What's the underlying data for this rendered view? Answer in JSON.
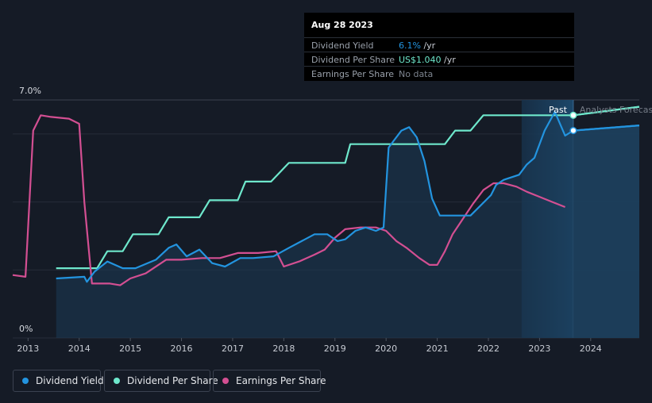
{
  "chart_data": {
    "type": "line",
    "title": "",
    "xlabel": "",
    "ylabel": "",
    "y_axis_labels": {
      "top": "7.0%",
      "bottom": "0%"
    },
    "x_ticks": [
      "2013",
      "2014",
      "2015",
      "2016",
      "2017",
      "2018",
      "2019",
      "2020",
      "2021",
      "2022",
      "2023",
      "2024"
    ],
    "xlim": [
      2012.7,
      2024.95
    ],
    "ylim": [
      0,
      7.0
    ],
    "forecast_start": 2022.65,
    "today": 2023.66,
    "region_labels": {
      "past": "Past",
      "forecast": "Analysts Forecasts"
    },
    "series": [
      {
        "name": "Dividend Per Share",
        "color": "#6ee8cc",
        "unit": "relative (plotted on % scale)",
        "x": [
          2013.55,
          2014.35,
          2014.55,
          2014.85,
          2015.05,
          2015.35,
          2015.55,
          2015.75,
          2015.85,
          2016.35,
          2016.55,
          2016.65,
          2017.1,
          2017.25,
          2017.3,
          2017.75,
          2018.1,
          2018.25,
          2018.55,
          2019.2,
          2019.3,
          2020.15,
          2020.25,
          2021.15,
          2021.35,
          2021.65,
          2021.9,
          2022.1,
          2023.0,
          2023.66,
          2024.95
        ],
        "values": [
          2.05,
          2.05,
          2.55,
          2.55,
          3.05,
          3.05,
          3.05,
          3.55,
          3.55,
          3.55,
          4.05,
          4.05,
          4.05,
          4.6,
          4.6,
          4.6,
          5.15,
          5.15,
          5.15,
          5.15,
          5.7,
          5.7,
          5.7,
          5.7,
          6.1,
          6.1,
          6.55,
          6.55,
          6.55,
          6.55,
          6.8
        ]
      },
      {
        "name": "Dividend Yield",
        "color": "#2394df",
        "unit": "%",
        "x": [
          2013.55,
          2014.1,
          2014.15,
          2014.3,
          2014.55,
          2014.85,
          2015.1,
          2015.5,
          2015.75,
          2015.9,
          2016.1,
          2016.35,
          2016.6,
          2016.85,
          2017.15,
          2017.4,
          2017.8,
          2018.1,
          2018.35,
          2018.6,
          2018.85,
          2019.05,
          2019.2,
          2019.4,
          2019.6,
          2019.8,
          2019.95,
          2020.05,
          2020.15,
          2020.3,
          2020.45,
          2020.6,
          2020.75,
          2020.9,
          2021.05,
          2021.15,
          2021.25,
          2021.4,
          2021.65,
          2022.05,
          2022.15,
          2022.3,
          2022.6,
          2022.75,
          2022.9,
          2023.1,
          2023.3,
          2023.5,
          2023.66,
          2024.95
        ],
        "values": [
          1.75,
          1.8,
          1.65,
          1.95,
          2.25,
          2.05,
          2.05,
          2.3,
          2.65,
          2.75,
          2.4,
          2.6,
          2.2,
          2.1,
          2.35,
          2.35,
          2.4,
          2.65,
          2.85,
          3.05,
          3.05,
          2.85,
          2.9,
          3.15,
          3.25,
          3.15,
          3.25,
          5.6,
          5.8,
          6.1,
          6.2,
          5.9,
          5.2,
          4.1,
          3.6,
          3.6,
          3.6,
          3.6,
          3.6,
          4.2,
          4.5,
          4.65,
          4.8,
          5.1,
          5.3,
          6.1,
          6.65,
          5.95,
          6.1,
          6.25
        ]
      },
      {
        "name": "Earnings Per Share",
        "color": "#d34f92",
        "unit": "relative (plotted on % scale)",
        "x": [
          2012.7,
          2012.95,
          2013.1,
          2013.25,
          2013.45,
          2013.8,
          2014.0,
          2014.1,
          2014.25,
          2014.4,
          2014.6,
          2014.8,
          2015.0,
          2015.3,
          2015.7,
          2016.0,
          2016.4,
          2016.75,
          2017.1,
          2017.5,
          2017.85,
          2018.0,
          2018.3,
          2018.6,
          2018.8,
          2019.0,
          2019.2,
          2019.5,
          2019.8,
          2020.0,
          2020.2,
          2020.4,
          2020.65,
          2020.85,
          2021.0,
          2021.15,
          2021.3,
          2021.5,
          2021.7,
          2021.9,
          2022.1,
          2022.3,
          2022.55,
          2022.75,
          2023.0,
          2023.25,
          2023.5
        ],
        "values": [
          1.85,
          1.8,
          6.1,
          6.55,
          6.5,
          6.45,
          6.3,
          4.0,
          1.6,
          1.6,
          1.6,
          1.55,
          1.75,
          1.9,
          2.3,
          2.3,
          2.35,
          2.35,
          2.5,
          2.5,
          2.55,
          2.1,
          2.25,
          2.45,
          2.6,
          2.95,
          3.2,
          3.25,
          3.25,
          3.15,
          2.85,
          2.65,
          2.35,
          2.15,
          2.15,
          2.55,
          3.05,
          3.5,
          3.95,
          4.35,
          4.55,
          4.55,
          4.45,
          4.3,
          4.15,
          4.0,
          3.85
        ]
      }
    ],
    "forecast": [
      {
        "name": "Dividend Per Share",
        "x": [
          2023.66,
          2024.95
        ],
        "values": [
          6.55,
          6.8
        ]
      },
      {
        "name": "Dividend Yield",
        "x": [
          2023.66,
          2024.95
        ],
        "values": [
          6.1,
          6.25
        ]
      }
    ]
  },
  "tooltip": {
    "date": "Aug 28 2023",
    "rows": [
      {
        "label": "Dividend Yield",
        "value": "6.1%",
        "unit": " /yr",
        "color": "#2394df"
      },
      {
        "label": "Dividend Per Share",
        "value": "US$1.040",
        "unit": " /yr",
        "color": "#6ee8cc"
      },
      {
        "label": "Earnings Per Share",
        "value": "No data",
        "unit": "",
        "color": "#7c838e"
      }
    ]
  },
  "legend": [
    {
      "label": "Dividend Yield",
      "color": "#2394df"
    },
    {
      "label": "Dividend Per Share",
      "color": "#6ee8cc"
    },
    {
      "label": "Earnings Per Share",
      "color": "#d34f92"
    }
  ]
}
